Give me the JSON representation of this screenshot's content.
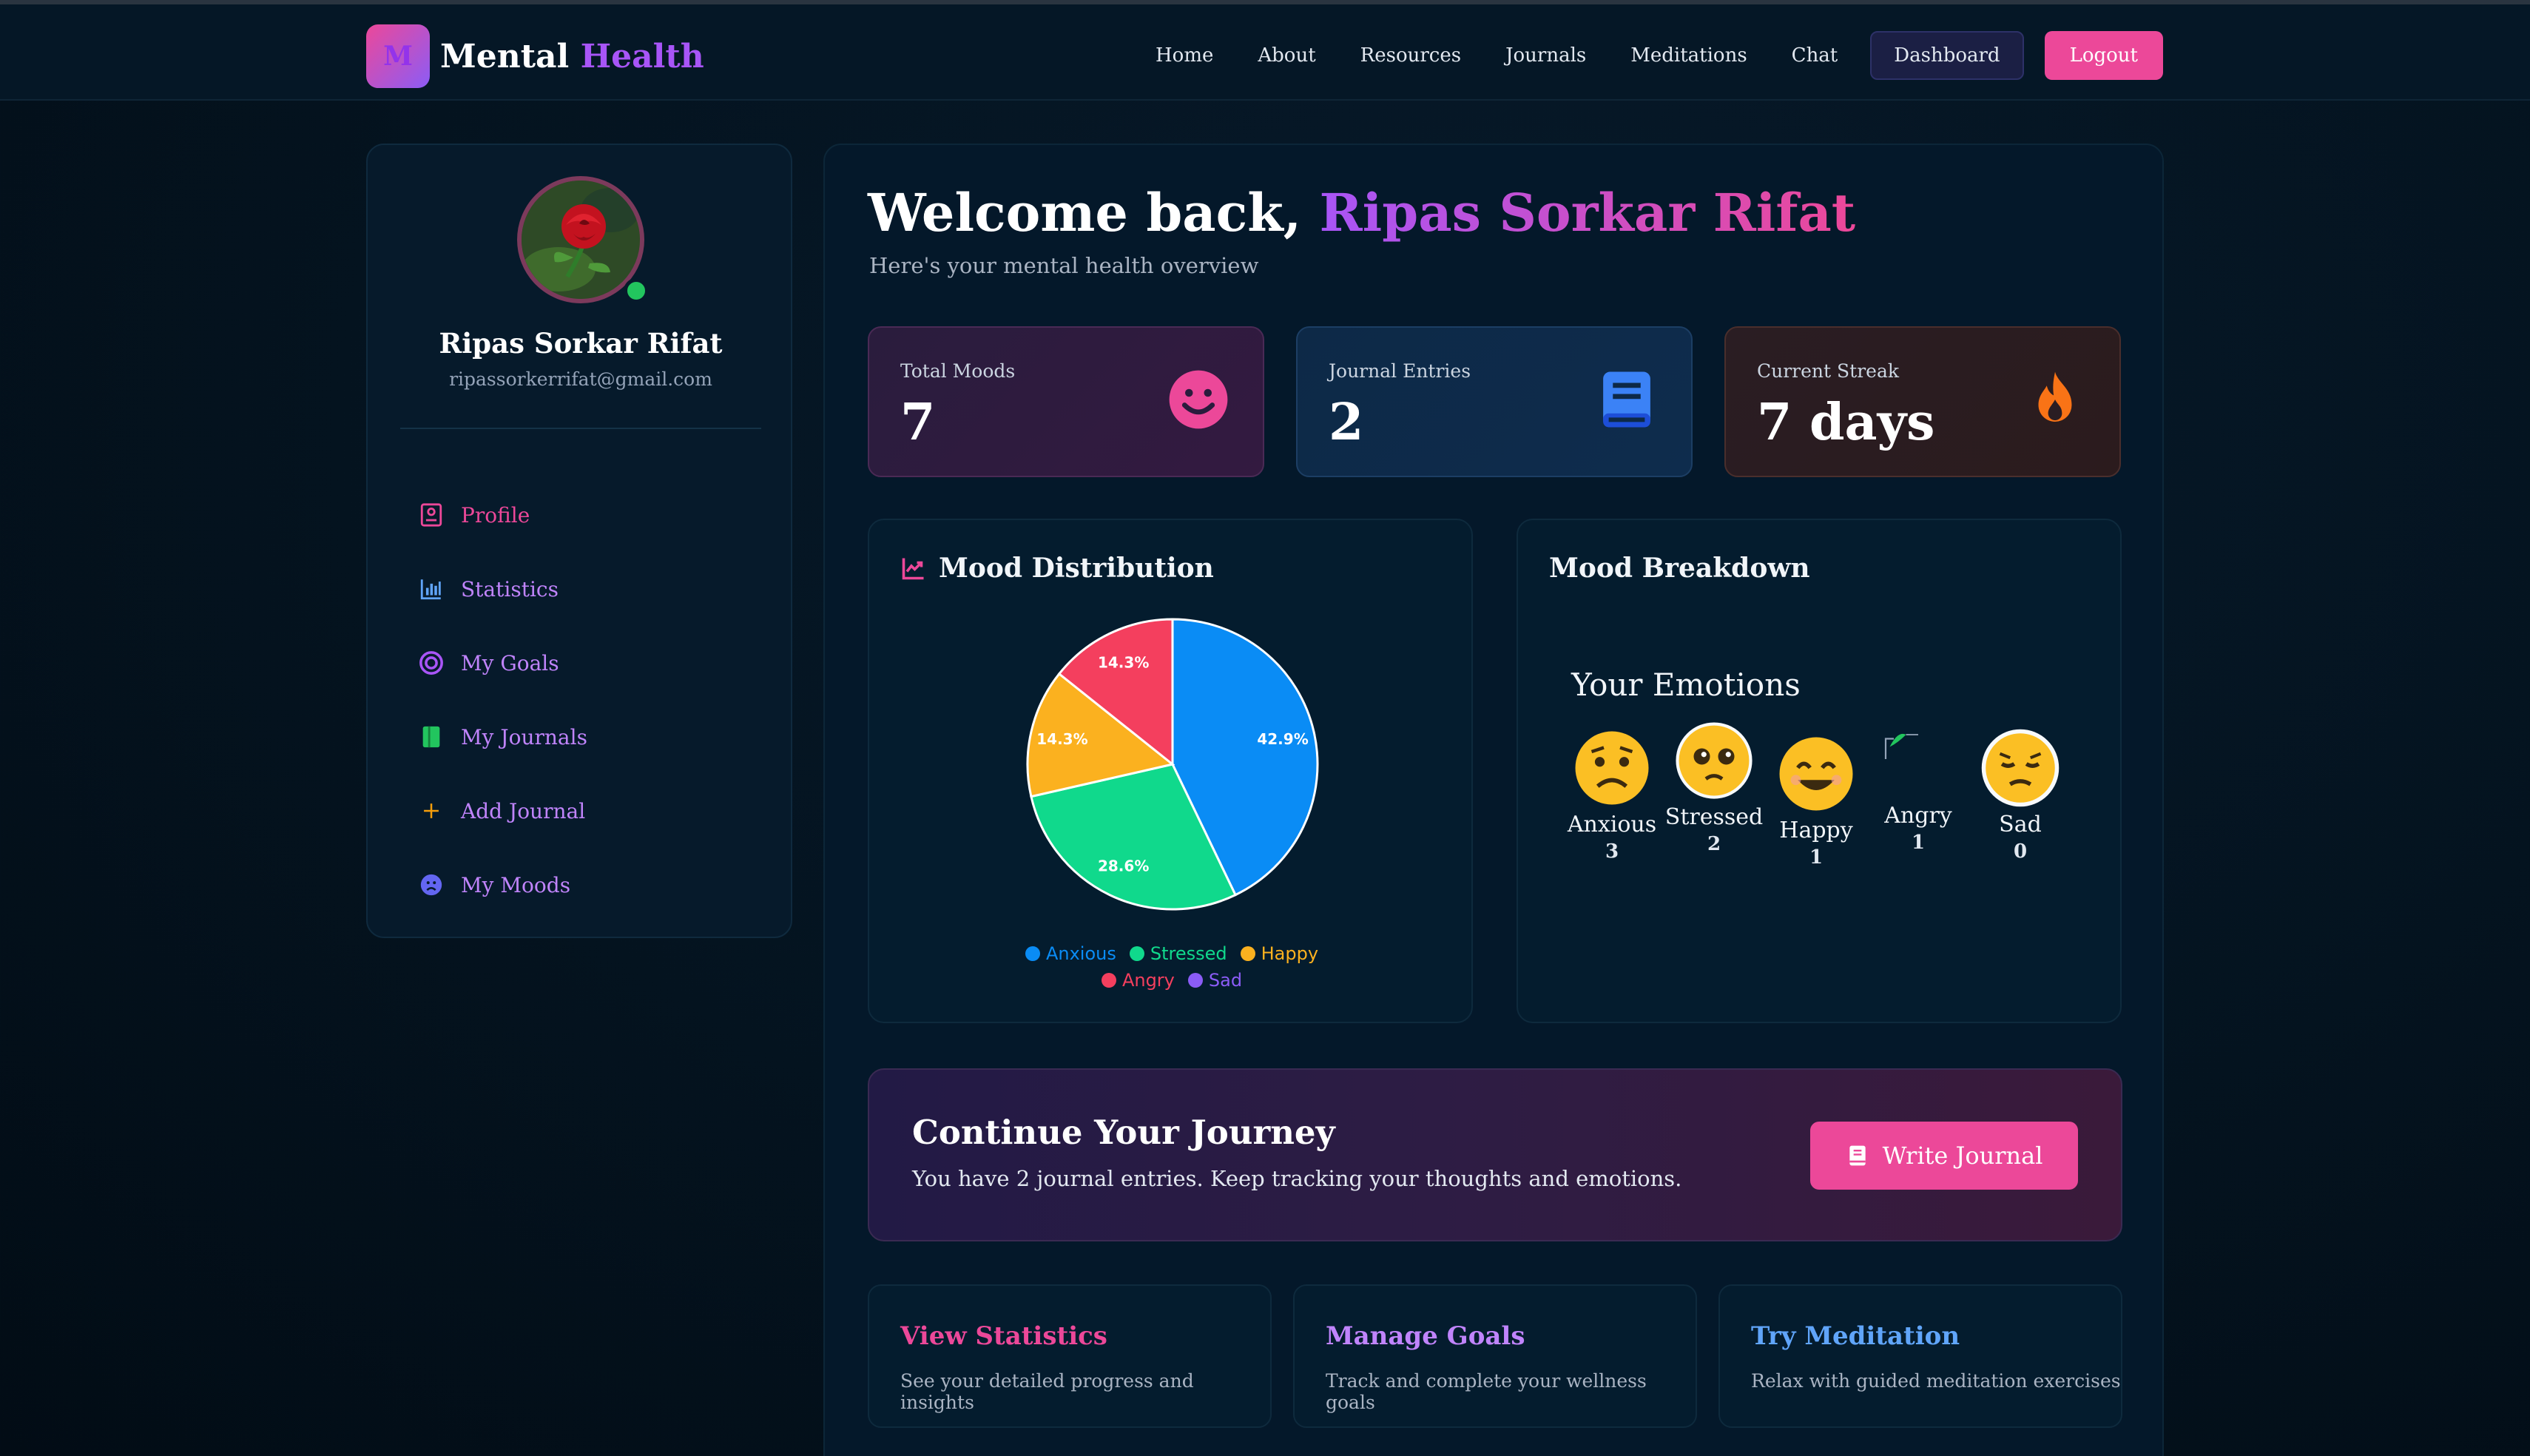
{
  "brand": {
    "logo_letter": "M",
    "name_part1": "Mental",
    "name_part2": "Health"
  },
  "nav": {
    "links": [
      "Home",
      "About",
      "Resources",
      "Journals",
      "Meditations",
      "Chat"
    ],
    "dashboard_label": "Dashboard",
    "logout_label": "Logout"
  },
  "sidebar": {
    "user_name": "Ripas Sorkar Rifat",
    "user_email": "ripassorkerrifat@gmail.com",
    "items": [
      {
        "label": "Profile",
        "icon": "profile-icon"
      },
      {
        "label": "Statistics",
        "icon": "bar-chart-icon"
      },
      {
        "label": "My Goals",
        "icon": "target-icon"
      },
      {
        "label": "My Journals",
        "icon": "book-icon"
      },
      {
        "label": "Add Journal",
        "icon": "plus-icon"
      },
      {
        "label": "My Moods",
        "icon": "sad-face-icon"
      }
    ]
  },
  "main": {
    "welcome_prefix": "Welcome back,",
    "welcome_name": "Ripas Sorkar Rifat",
    "subtitle": "Here's your mental health overview",
    "stats": {
      "total_moods_label": "Total Moods",
      "total_moods_value": "7",
      "journal_entries_label": "Journal Entries",
      "journal_entries_value": "2",
      "streak_label": "Current Streak",
      "streak_value": "7 days"
    },
    "mood_distribution_title": "Mood Distribution",
    "mood_breakdown_title": "Mood Breakdown",
    "emotions_title": "Your Emotions",
    "emotions": [
      {
        "label": "Anxious",
        "count": "3"
      },
      {
        "label": "Stressed",
        "count": "2"
      },
      {
        "label": "Happy",
        "count": "1"
      },
      {
        "label": "Angry",
        "count": "1"
      },
      {
        "label": "Sad",
        "count": "0"
      }
    ],
    "journey": {
      "title": "Continue Your Journey",
      "text": "You have 2 journal entries. Keep tracking your thoughts and emotions.",
      "button_label": "Write Journal"
    },
    "actions": [
      {
        "title": "View Statistics",
        "desc": "See your detailed progress and insights"
      },
      {
        "title": "Manage Goals",
        "desc": "Track and complete your wellness goals"
      },
      {
        "title": "Try Meditation",
        "desc": "Relax with guided meditation exercises"
      }
    ]
  },
  "chart_data": {
    "type": "pie",
    "categories": [
      "Anxious",
      "Stressed",
      "Happy",
      "Angry",
      "Sad"
    ],
    "values": [
      3,
      2,
      1,
      1,
      0
    ],
    "percent_labels": [
      "42.9%",
      "28.6%",
      "14.3%",
      "14.3%",
      ""
    ],
    "colors": [
      "#0a8cf5",
      "#10d98c",
      "#fbb11f",
      "#f43f5e",
      "#8b5cf6"
    ],
    "legend_position": "bottom"
  },
  "colors": {
    "accent_pink": "#ec4899",
    "accent_purple": "#a855f7",
    "accent_blue": "#60a5fa"
  }
}
